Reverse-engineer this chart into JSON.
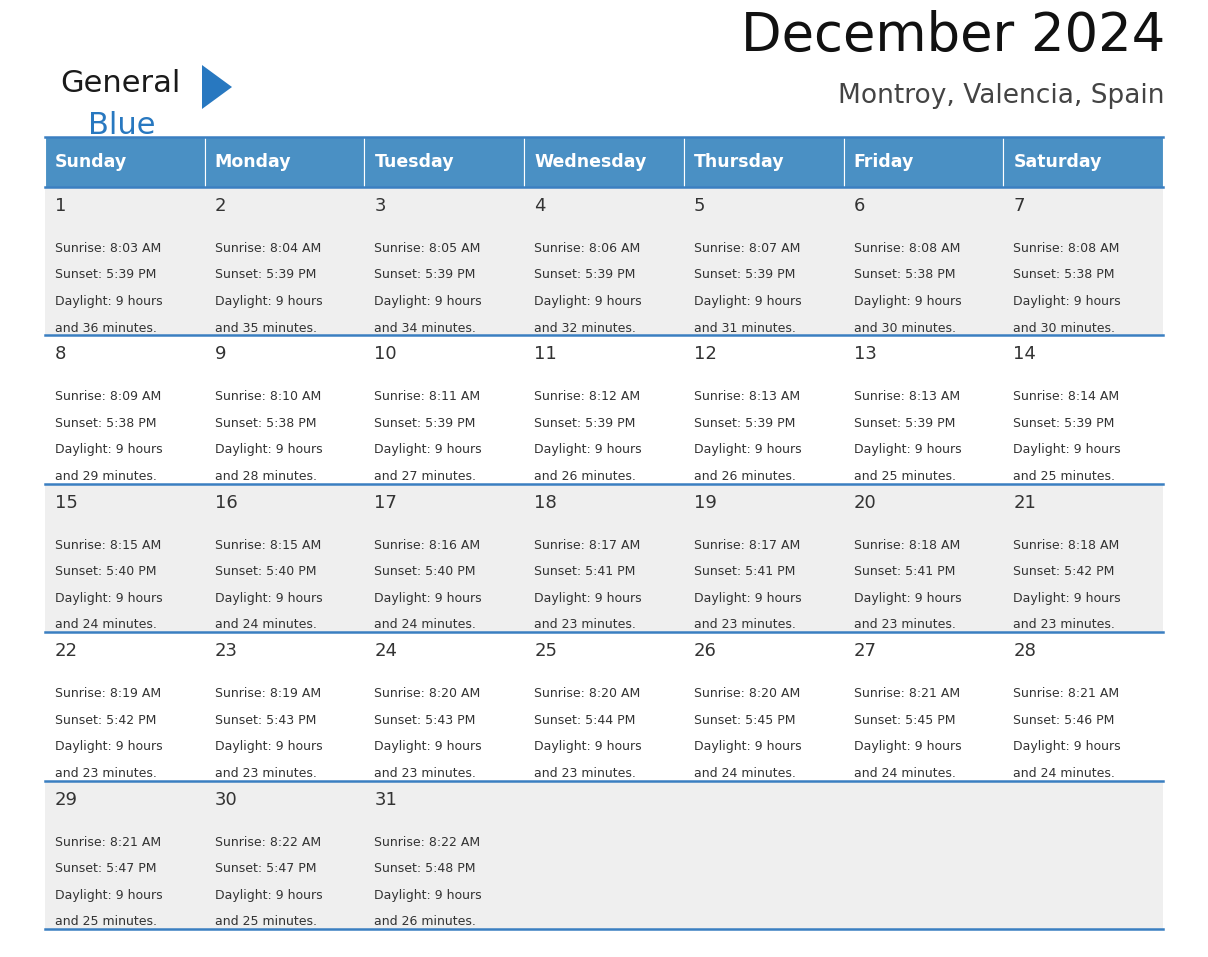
{
  "title": "December 2024",
  "subtitle": "Montroy, Valencia, Spain",
  "header_color": "#4A90C4",
  "header_text_color": "#FFFFFF",
  "cell_bg_even": "#EFEFEF",
  "cell_bg_odd": "#FFFFFF",
  "border_color": "#3A7FC1",
  "text_color": "#333333",
  "days_of_week": [
    "Sunday",
    "Monday",
    "Tuesday",
    "Wednesday",
    "Thursday",
    "Friday",
    "Saturday"
  ],
  "weeks": [
    [
      {
        "day": "1",
        "sunrise": "8:03 AM",
        "sunset": "5:39 PM",
        "daylight_h": "9 hours",
        "daylight_m": "36 minutes."
      },
      {
        "day": "2",
        "sunrise": "8:04 AM",
        "sunset": "5:39 PM",
        "daylight_h": "9 hours",
        "daylight_m": "35 minutes."
      },
      {
        "day": "3",
        "sunrise": "8:05 AM",
        "sunset": "5:39 PM",
        "daylight_h": "9 hours",
        "daylight_m": "34 minutes."
      },
      {
        "day": "4",
        "sunrise": "8:06 AM",
        "sunset": "5:39 PM",
        "daylight_h": "9 hours",
        "daylight_m": "32 minutes."
      },
      {
        "day": "5",
        "sunrise": "8:07 AM",
        "sunset": "5:39 PM",
        "daylight_h": "9 hours",
        "daylight_m": "31 minutes."
      },
      {
        "day": "6",
        "sunrise": "8:08 AM",
        "sunset": "5:38 PM",
        "daylight_h": "9 hours",
        "daylight_m": "30 minutes."
      },
      {
        "day": "7",
        "sunrise": "8:08 AM",
        "sunset": "5:38 PM",
        "daylight_h": "9 hours",
        "daylight_m": "30 minutes."
      }
    ],
    [
      {
        "day": "8",
        "sunrise": "8:09 AM",
        "sunset": "5:38 PM",
        "daylight_h": "9 hours",
        "daylight_m": "29 minutes."
      },
      {
        "day": "9",
        "sunrise": "8:10 AM",
        "sunset": "5:38 PM",
        "daylight_h": "9 hours",
        "daylight_m": "28 minutes."
      },
      {
        "day": "10",
        "sunrise": "8:11 AM",
        "sunset": "5:39 PM",
        "daylight_h": "9 hours",
        "daylight_m": "27 minutes."
      },
      {
        "day": "11",
        "sunrise": "8:12 AM",
        "sunset": "5:39 PM",
        "daylight_h": "9 hours",
        "daylight_m": "26 minutes."
      },
      {
        "day": "12",
        "sunrise": "8:13 AM",
        "sunset": "5:39 PM",
        "daylight_h": "9 hours",
        "daylight_m": "26 minutes."
      },
      {
        "day": "13",
        "sunrise": "8:13 AM",
        "sunset": "5:39 PM",
        "daylight_h": "9 hours",
        "daylight_m": "25 minutes."
      },
      {
        "day": "14",
        "sunrise": "8:14 AM",
        "sunset": "5:39 PM",
        "daylight_h": "9 hours",
        "daylight_m": "25 minutes."
      }
    ],
    [
      {
        "day": "15",
        "sunrise": "8:15 AM",
        "sunset": "5:40 PM",
        "daylight_h": "9 hours",
        "daylight_m": "24 minutes."
      },
      {
        "day": "16",
        "sunrise": "8:15 AM",
        "sunset": "5:40 PM",
        "daylight_h": "9 hours",
        "daylight_m": "24 minutes."
      },
      {
        "day": "17",
        "sunrise": "8:16 AM",
        "sunset": "5:40 PM",
        "daylight_h": "9 hours",
        "daylight_m": "24 minutes."
      },
      {
        "day": "18",
        "sunrise": "8:17 AM",
        "sunset": "5:41 PM",
        "daylight_h": "9 hours",
        "daylight_m": "23 minutes."
      },
      {
        "day": "19",
        "sunrise": "8:17 AM",
        "sunset": "5:41 PM",
        "daylight_h": "9 hours",
        "daylight_m": "23 minutes."
      },
      {
        "day": "20",
        "sunrise": "8:18 AM",
        "sunset": "5:41 PM",
        "daylight_h": "9 hours",
        "daylight_m": "23 minutes."
      },
      {
        "day": "21",
        "sunrise": "8:18 AM",
        "sunset": "5:42 PM",
        "daylight_h": "9 hours",
        "daylight_m": "23 minutes."
      }
    ],
    [
      {
        "day": "22",
        "sunrise": "8:19 AM",
        "sunset": "5:42 PM",
        "daylight_h": "9 hours",
        "daylight_m": "23 minutes."
      },
      {
        "day": "23",
        "sunrise": "8:19 AM",
        "sunset": "5:43 PM",
        "daylight_h": "9 hours",
        "daylight_m": "23 minutes."
      },
      {
        "day": "24",
        "sunrise": "8:20 AM",
        "sunset": "5:43 PM",
        "daylight_h": "9 hours",
        "daylight_m": "23 minutes."
      },
      {
        "day": "25",
        "sunrise": "8:20 AM",
        "sunset": "5:44 PM",
        "daylight_h": "9 hours",
        "daylight_m": "23 minutes."
      },
      {
        "day": "26",
        "sunrise": "8:20 AM",
        "sunset": "5:45 PM",
        "daylight_h": "9 hours",
        "daylight_m": "24 minutes."
      },
      {
        "day": "27",
        "sunrise": "8:21 AM",
        "sunset": "5:45 PM",
        "daylight_h": "9 hours",
        "daylight_m": "24 minutes."
      },
      {
        "day": "28",
        "sunrise": "8:21 AM",
        "sunset": "5:46 PM",
        "daylight_h": "9 hours",
        "daylight_m": "24 minutes."
      }
    ],
    [
      {
        "day": "29",
        "sunrise": "8:21 AM",
        "sunset": "5:47 PM",
        "daylight_h": "9 hours",
        "daylight_m": "25 minutes."
      },
      {
        "day": "30",
        "sunrise": "8:22 AM",
        "sunset": "5:47 PM",
        "daylight_h": "9 hours",
        "daylight_m": "25 minutes."
      },
      {
        "day": "31",
        "sunrise": "8:22 AM",
        "sunset": "5:48 PM",
        "daylight_h": "9 hours",
        "daylight_m": "26 minutes."
      },
      null,
      null,
      null,
      null
    ]
  ]
}
